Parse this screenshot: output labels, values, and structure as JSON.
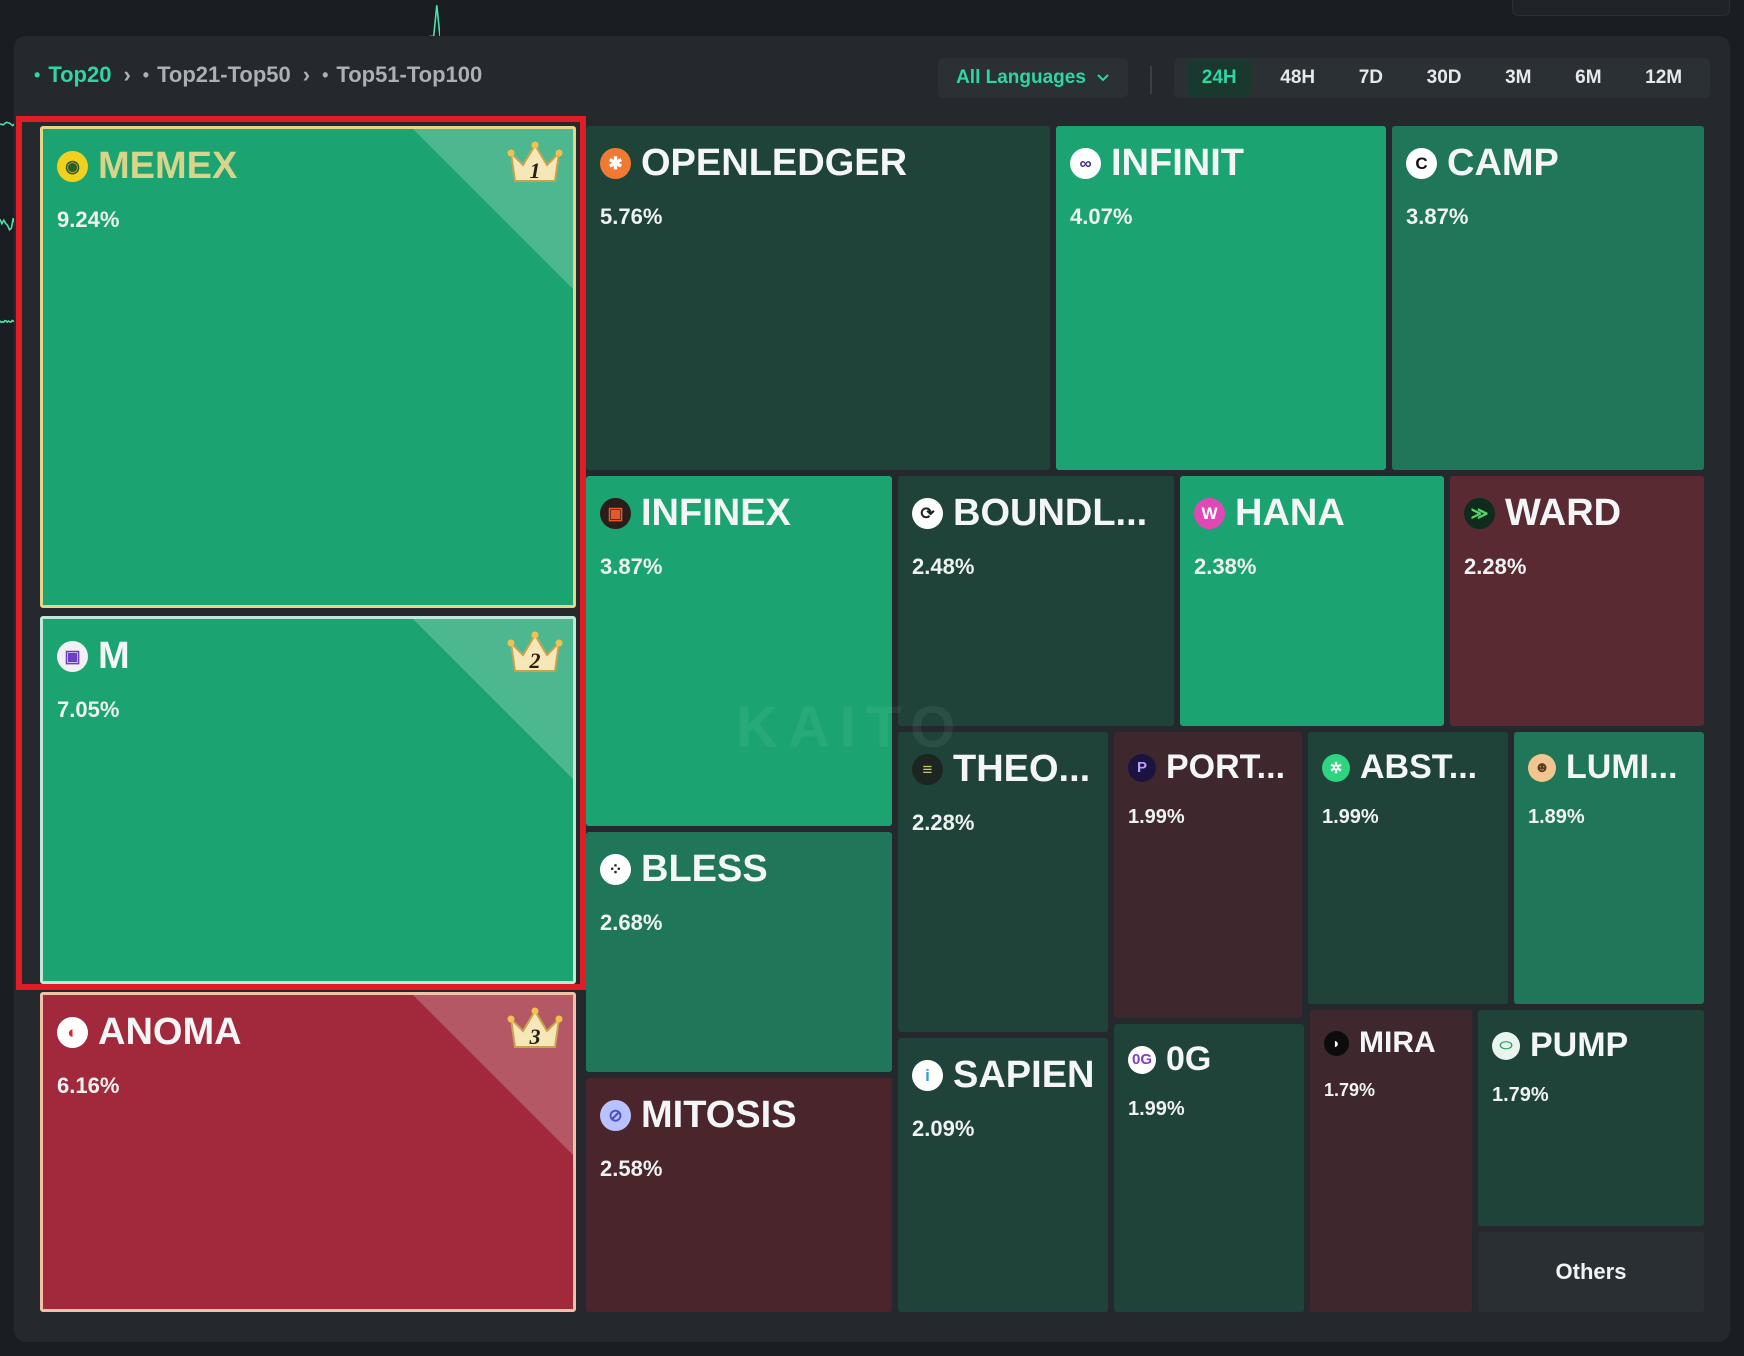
{
  "breadcrumb": [
    {
      "label": "Top20",
      "active": true
    },
    {
      "label": "Top21-Top50",
      "active": false
    },
    {
      "label": "Top51-Top100",
      "active": false
    }
  ],
  "language_select": {
    "value": "All Languages"
  },
  "time_tabs": [
    "24H",
    "48H",
    "7D",
    "30D",
    "3M",
    "6M",
    "12M"
  ],
  "active_time_tab": "24H",
  "watermark": "KAITO",
  "others_label": "Others",
  "colors": {
    "accent": "#2dd6a2",
    "up_bright": "#1ba471",
    "up_mid": "#207658",
    "up_dark": "#1f4339",
    "down_bright": "#a1293b",
    "down_dark": "#4a252c"
  },
  "tiles": [
    {
      "id": "memex",
      "name": "MEMEX",
      "pct": "9.24%",
      "rank": "1",
      "icon": "memex-logo-icon"
    },
    {
      "id": "m",
      "name": "M",
      "pct": "7.05%",
      "rank": "2",
      "icon": "m-logo-icon"
    },
    {
      "id": "anoma",
      "name": "ANOMA",
      "pct": "6.16%",
      "rank": "3",
      "icon": "anoma-logo-icon"
    },
    {
      "id": "openledger",
      "name": "OPENLEDGER",
      "pct": "5.76%",
      "icon": "octopus-logo-icon"
    },
    {
      "id": "infinit",
      "name": "INFINIT",
      "pct": "4.07%",
      "icon": "infinit-logo-icon"
    },
    {
      "id": "camp",
      "name": "CAMP",
      "pct": "3.87%",
      "icon": "camp-logo-icon"
    },
    {
      "id": "infinex",
      "name": "INFINEX",
      "pct": "3.87%",
      "icon": "infinex-logo-icon"
    },
    {
      "id": "boundless",
      "name": "BOUNDL...",
      "pct": "2.48%",
      "icon": "boundless-logo-icon"
    },
    {
      "id": "hana",
      "name": "HANA",
      "pct": "2.38%",
      "icon": "hana-logo-icon"
    },
    {
      "id": "ward",
      "name": "WARD",
      "pct": "2.28%",
      "icon": "ward-logo-icon"
    },
    {
      "id": "bless",
      "name": "BLESS",
      "pct": "2.68%",
      "icon": "bless-logo-icon"
    },
    {
      "id": "theo",
      "name": "THEO...",
      "pct": "2.28%",
      "icon": "theo-logo-icon"
    },
    {
      "id": "port",
      "name": "PORT...",
      "pct": "1.99%",
      "icon": "port-logo-icon"
    },
    {
      "id": "abst",
      "name": "ABST...",
      "pct": "1.99%",
      "icon": "abst-logo-icon"
    },
    {
      "id": "lumi",
      "name": "LUMI...",
      "pct": "1.89%",
      "icon": "lumi-logo-icon"
    },
    {
      "id": "mitosis",
      "name": "MITOSIS",
      "pct": "2.58%",
      "icon": "mitosis-logo-icon"
    },
    {
      "id": "sapien",
      "name": "SAPIEN",
      "pct": "2.09%",
      "icon": "sapien-logo-icon"
    },
    {
      "id": "og",
      "name": "0G",
      "pct": "1.99%",
      "icon": "og-logo-icon"
    },
    {
      "id": "mira",
      "name": "MIRA",
      "pct": "1.79%",
      "icon": "mira-logo-icon"
    },
    {
      "id": "pump",
      "name": "PUMP",
      "pct": "1.79%",
      "icon": "pump-logo-icon"
    }
  ]
}
